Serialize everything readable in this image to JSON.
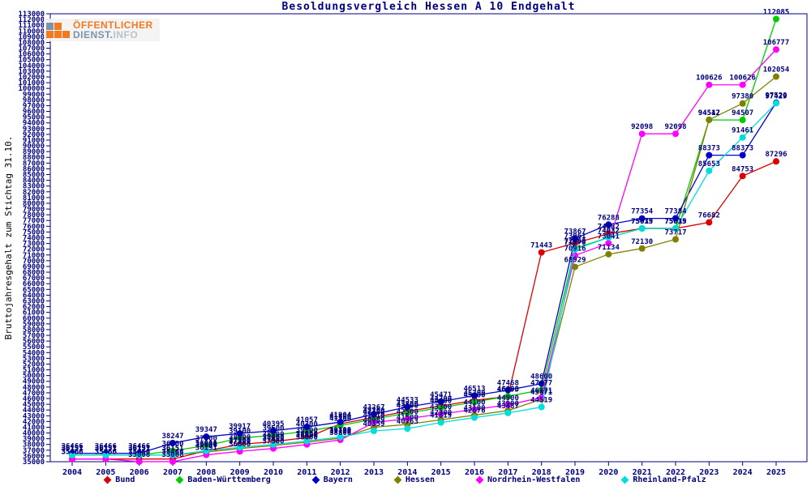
{
  "logo": {
    "line1": "ÖFFENTLICHER",
    "line2_part1": "DIENST.",
    "line2_part2": "INFO",
    "orange": "#f4791f",
    "slate": "#7d93a8"
  },
  "chart_data": {
    "type": "line",
    "title": "Besoldungsvergleich Hessen A 10 Endgehalt",
    "ylabel": "Bruttojahresgehalt zum Stichtag 31.10.",
    "xlabel": "",
    "ylim": [
      35000,
      113000
    ],
    "ytick_step": 1000,
    "grid": false,
    "legend_position": "bottom",
    "axis_color": "#000080",
    "label_color": "#000080",
    "x": [
      2004,
      2005,
      2006,
      2007,
      2008,
      2009,
      2010,
      2011,
      2012,
      2013,
      2014,
      2015,
      2016,
      2017,
      2018,
      2019,
      2020,
      2021,
      2022,
      2023,
      2024,
      2025
    ],
    "series": [
      {
        "name": "Bund",
        "color": "#dd0000",
        "values": [
          35466,
          35466,
          35466,
          35466,
          36900,
          38000,
          38500,
          39200,
          41600,
          42700,
          43800,
          44700,
          45700,
          46355,
          71443,
          73061,
          74682,
          75615,
          75615,
          76682,
          84753,
          87296
        ]
      },
      {
        "name": "Baden-Württemberg",
        "color": "#00cc00",
        "values": [
          36151,
          36151,
          36151,
          36900,
          37800,
          39100,
          39600,
          40300,
          41300,
          42400,
          43500,
          44400,
          45400,
          46400,
          47477,
          72160,
          74032,
          75635,
          75635,
          94512,
          94507,
          112085
        ]
      },
      {
        "name": "Bayern",
        "color": "#0000cc",
        "values": [
          36466,
          36466,
          36466,
          38247,
          39347,
          39917,
          40395,
          41057,
          41904,
          43267,
          44533,
          45471,
          46513,
          47468,
          48600,
          73867,
          76288,
          77354,
          77384,
          88373,
          88373,
          97520
        ]
      },
      {
        "name": "Hessen",
        "color": "#808000",
        "values": [
          36151,
          36151,
          36151,
          36151,
          36686,
          37300,
          37800,
          38400,
          39100,
          40989,
          41500,
          42300,
          43100,
          43900,
          45871,
          68929,
          71134,
          72130,
          73717,
          94547,
          97380,
          102054
        ]
      },
      {
        "name": "Nordrhein-Westfalen",
        "color": "#ff00ff",
        "values": [
          35466,
          35466,
          35008,
          35008,
          36191,
          36800,
          37300,
          38000,
          38800,
          41810,
          42500,
          43300,
          44100,
          44900,
          46171,
          70916,
          73041,
          92098,
          92098,
          100626,
          100626,
          106777
        ]
      },
      {
        "name": "Rheinland-Pfalz",
        "color": "#00dddd",
        "values": [
          36151,
          36151,
          36151,
          36151,
          36901,
          37500,
          38000,
          38600,
          39300,
          40359,
          40763,
          41819,
          42676,
          43487,
          44519,
          71970,
          74032,
          75619,
          75619,
          85653,
          91461,
          97429
        ]
      }
    ]
  }
}
